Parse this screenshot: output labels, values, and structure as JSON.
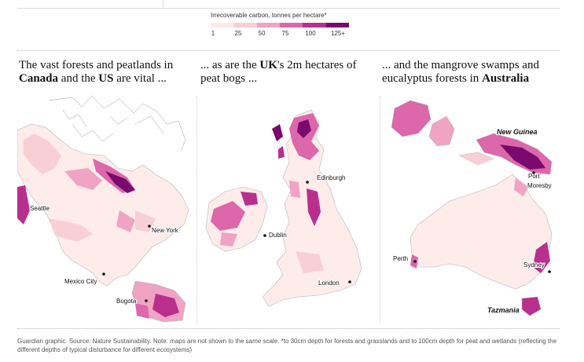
{
  "legend": {
    "title": "Irrecoverable carbon, tonnes per hectare*",
    "labels": [
      "1",
      "25",
      "50",
      "75",
      "100",
      "125+"
    ],
    "colors": [
      "#fde9e7",
      "#f9cfd6",
      "#f0a3c3",
      "#dc67aa",
      "#b92f8e",
      "#7b0a6e"
    ]
  },
  "panels": [
    {
      "headline_parts": [
        {
          "text": "The vast forests and peatlands in ",
          "bold": false
        },
        {
          "text": "Canada",
          "bold": true
        },
        {
          "text": " and the ",
          "bold": false
        },
        {
          "text": "US",
          "bold": true
        },
        {
          "text": " are vital ...",
          "bold": false
        }
      ],
      "labels": [
        "Seattle",
        "New York",
        "Mexico City",
        "Bogota"
      ]
    },
    {
      "headline_parts": [
        {
          "text": "... as are the ",
          "bold": false
        },
        {
          "text": "UK",
          "bold": true
        },
        {
          "text": "'s 2m hectares of peat bogs ...",
          "bold": false
        }
      ],
      "labels": [
        "Edinburgh",
        "Dublin",
        "London"
      ]
    },
    {
      "headline_parts": [
        {
          "text": "... and the mangrove swamps and eucalyptus forests in ",
          "bold": false
        },
        {
          "text": "Australia",
          "bold": true
        }
      ],
      "labels": [
        "New Guinea",
        "Port",
        "Moresby",
        "Perth",
        "Sydney",
        "Tazmania"
      ]
    }
  ],
  "footnote": "Guardian graphic. Source: Nature Sustainability. Note: maps are not shown to the same scale. *to 30cm depth for forests and grasslands and to 100cm depth for peat and wetlands (reflecting the different depths of typical disturbance for different ecosystems)"
}
